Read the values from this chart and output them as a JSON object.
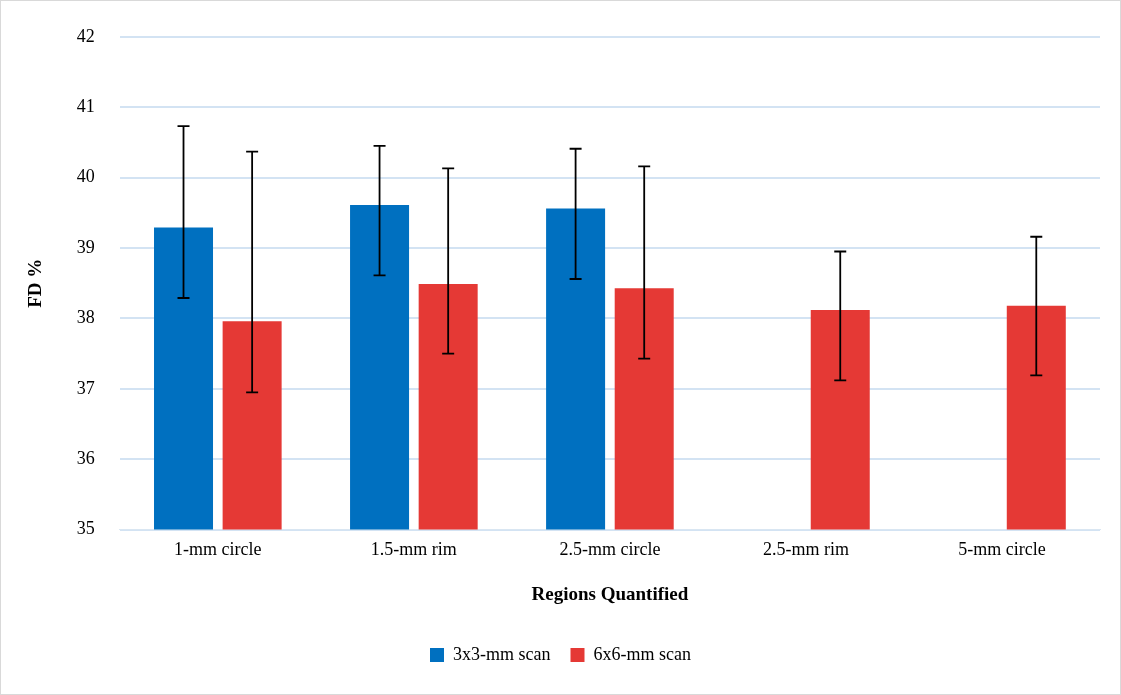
{
  "chart_data": {
    "type": "bar",
    "xlabel": "Regions Quantified",
    "ylabel": "FD %",
    "categories": [
      "1-mm circle",
      "1.5-mm rim",
      "2.5-mm circle",
      "2.5-mm rim",
      "5-mm circle"
    ],
    "series": [
      {
        "name": "3x3-mm scan",
        "color": "#0070c0",
        "values": [
          39.29,
          39.61,
          39.56,
          null,
          null
        ],
        "errors": [
          [
            38.29,
            40.73
          ],
          [
            38.61,
            40.45
          ],
          [
            38.56,
            40.41
          ],
          null,
          null
        ]
      },
      {
        "name": "6x6-mm scan",
        "color": "#e53935",
        "values": [
          37.96,
          38.49,
          38.43,
          38.12,
          38.18
        ],
        "errors": [
          [
            36.95,
            40.37
          ],
          [
            37.5,
            40.13
          ],
          [
            37.43,
            40.16
          ],
          [
            37.12,
            38.95
          ],
          [
            37.19,
            39.16
          ]
        ]
      }
    ],
    "ylim": [
      35,
      42
    ],
    "yticks": [
      35,
      36,
      37,
      38,
      39,
      40,
      41,
      42
    ],
    "grid": "y",
    "legend": "bottom"
  }
}
